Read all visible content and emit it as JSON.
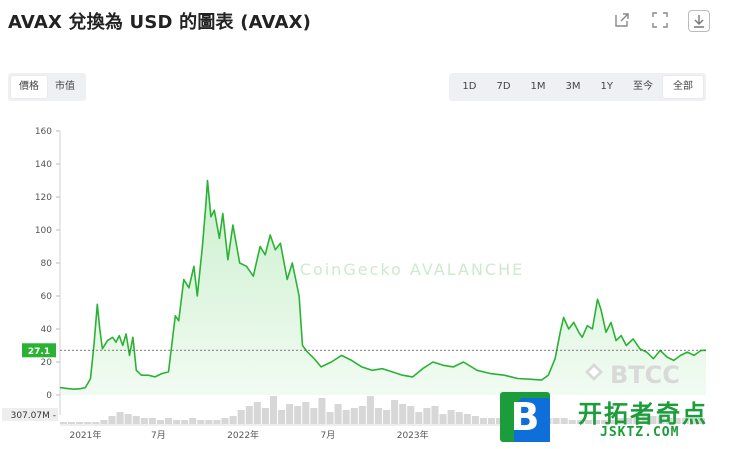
{
  "title": "AVAX 兌換為 USD 的圖表 (AVAX)",
  "toolbar": {
    "icons": [
      "share-icon",
      "fullscreen-icon",
      "download-icon"
    ]
  },
  "view_toggle": {
    "options": [
      "價格",
      "市值"
    ],
    "selected": "價格"
  },
  "range_toggle": {
    "options": [
      "1D",
      "7D",
      "1M",
      "3M",
      "1Y",
      "至今",
      "全部"
    ],
    "selected": "全部"
  },
  "watermarks": {
    "faded": "CoinGecko AVALANCHE",
    "brand": "BTCC"
  },
  "site_logo": {
    "mark": "B",
    "name": "开拓者奇点",
    "url": "JSKTZ.COM"
  },
  "chart_data": {
    "type": "area",
    "title": "AVAX 兌換為 USD 的圖表 (AVAX)",
    "xlabel": "",
    "ylabel": "",
    "ylim": [
      0,
      160
    ],
    "yticks": [
      0,
      20,
      40,
      60,
      80,
      100,
      120,
      140,
      160
    ],
    "xticks": [
      "2021年",
      "7月",
      "2022年",
      "7月",
      "2023年"
    ],
    "current_price_label": "27.1",
    "current_price": 27.1,
    "volume_label": "307.07M",
    "grid": false,
    "colors": {
      "line": "#2ab333",
      "fill": "#c9efcb",
      "volume": "#d7d7d7"
    },
    "series": [
      {
        "values": [
          [
            2020.92,
            4.5
          ],
          [
            2020.96,
            4.0
          ],
          [
            2021.0,
            3.5
          ],
          [
            2021.04,
            3.8
          ],
          [
            2021.07,
            4.5
          ],
          [
            2021.1,
            10.0
          ],
          [
            2021.12,
            30.0
          ],
          [
            2021.14,
            55.0
          ],
          [
            2021.155,
            40.0
          ],
          [
            2021.17,
            28.0
          ],
          [
            2021.2,
            33.0
          ],
          [
            2021.23,
            35.0
          ],
          [
            2021.25,
            32.0
          ],
          [
            2021.27,
            36.0
          ],
          [
            2021.29,
            30.0
          ],
          [
            2021.31,
            37.0
          ],
          [
            2021.33,
            24.0
          ],
          [
            2021.35,
            35.0
          ],
          [
            2021.37,
            15.0
          ],
          [
            2021.4,
            12.0
          ],
          [
            2021.44,
            12.0
          ],
          [
            2021.48,
            11.0
          ],
          [
            2021.52,
            13.0
          ],
          [
            2021.56,
            14.0
          ],
          [
            2021.6,
            48.0
          ],
          [
            2021.62,
            45.0
          ],
          [
            2021.65,
            70.0
          ],
          [
            2021.68,
            65.0
          ],
          [
            2021.71,
            78.0
          ],
          [
            2021.73,
            60.0
          ],
          [
            2021.76,
            90.0
          ],
          [
            2021.78,
            115.0
          ],
          [
            2021.79,
            130.0
          ],
          [
            2021.81,
            108.0
          ],
          [
            2021.83,
            112.0
          ],
          [
            2021.86,
            95.0
          ],
          [
            2021.88,
            110.0
          ],
          [
            2021.91,
            82.0
          ],
          [
            2021.94,
            103.0
          ],
          [
            2021.98,
            80.0
          ],
          [
            2022.02,
            78.0
          ],
          [
            2022.06,
            72.0
          ],
          [
            2022.1,
            90.0
          ],
          [
            2022.13,
            85.0
          ],
          [
            2022.16,
            97.0
          ],
          [
            2022.19,
            88.0
          ],
          [
            2022.22,
            92.0
          ],
          [
            2022.26,
            70.0
          ],
          [
            2022.29,
            80.0
          ],
          [
            2022.33,
            60.0
          ],
          [
            2022.35,
            30.0
          ],
          [
            2022.38,
            26.0
          ],
          [
            2022.42,
            22.0
          ],
          [
            2022.46,
            17.0
          ],
          [
            2022.52,
            20.0
          ],
          [
            2022.58,
            24.0
          ],
          [
            2022.64,
            21.0
          ],
          [
            2022.7,
            17.0
          ],
          [
            2022.76,
            15.0
          ],
          [
            2022.82,
            16.0
          ],
          [
            2022.88,
            14.0
          ],
          [
            2022.94,
            12.0
          ],
          [
            2023.0,
            11.0
          ],
          [
            2023.06,
            16.0
          ],
          [
            2023.12,
            20.0
          ],
          [
            2023.18,
            18.0
          ],
          [
            2023.24,
            17.0
          ],
          [
            2023.3,
            20.0
          ],
          [
            2023.38,
            15.0
          ],
          [
            2023.46,
            13.0
          ],
          [
            2023.54,
            12.0
          ],
          [
            2023.62,
            10.0
          ],
          [
            2023.7,
            9.5
          ],
          [
            2023.76,
            9.0
          ],
          [
            2023.8,
            12.0
          ],
          [
            2023.84,
            22.0
          ],
          [
            2023.87,
            38.0
          ],
          [
            2023.89,
            47.0
          ],
          [
            2023.92,
            40.0
          ],
          [
            2023.95,
            44.0
          ],
          [
            2023.98,
            38.0
          ],
          [
            2024.0,
            35.0
          ],
          [
            2024.03,
            42.0
          ],
          [
            2024.06,
            40.0
          ],
          [
            2024.09,
            58.0
          ],
          [
            2024.11,
            52.0
          ],
          [
            2024.14,
            38.0
          ],
          [
            2024.17,
            44.0
          ],
          [
            2024.2,
            33.0
          ],
          [
            2024.23,
            36.0
          ],
          [
            2024.26,
            30.0
          ],
          [
            2024.3,
            34.0
          ],
          [
            2024.34,
            28.0
          ],
          [
            2024.38,
            26.0
          ],
          [
            2024.42,
            22.0
          ],
          [
            2024.46,
            27.0
          ],
          [
            2024.5,
            23.0
          ],
          [
            2024.54,
            21.0
          ],
          [
            2024.58,
            24.0
          ],
          [
            2024.62,
            26.0
          ],
          [
            2024.66,
            24.0
          ],
          [
            2024.7,
            27.0
          ],
          [
            2024.73,
            27.1
          ]
        ]
      }
    ],
    "volume_series": [
      1,
      1,
      1,
      1,
      1,
      2,
      4,
      6,
      5,
      4,
      3,
      3,
      2,
      3,
      2,
      2,
      3,
      2,
      2,
      2,
      3,
      4,
      7,
      9,
      11,
      8,
      14,
      7,
      10,
      9,
      11,
      8,
      13,
      6,
      10,
      7,
      8,
      9,
      14,
      8,
      7,
      12,
      10,
      9,
      6,
      8,
      9,
      5,
      7,
      6,
      5,
      4,
      3,
      3,
      3,
      2,
      2,
      2,
      2,
      2,
      3,
      3,
      3,
      2,
      2,
      2,
      2,
      2,
      2,
      3,
      3,
      4,
      4,
      4,
      4,
      3,
      3,
      3,
      3,
      3
    ]
  }
}
